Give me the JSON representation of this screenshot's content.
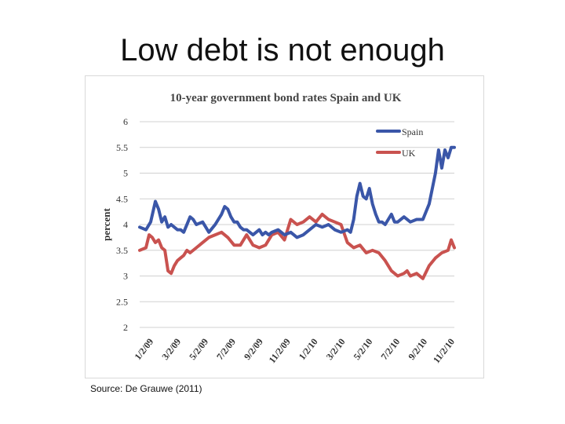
{
  "slide": {
    "title": "Low debt is not enough",
    "source": "Source: De Grauwe (2011)"
  },
  "colors": {
    "spain": "#3a56a8",
    "uk": "#c9524f",
    "grid": "#d0d0d0",
    "text": "#333333"
  },
  "chart_data": {
    "type": "line",
    "title": "10-year government bond rates Spain and UK",
    "xlabel": "",
    "ylabel": "percent",
    "ylim": [
      2,
      6
    ],
    "yticks": [
      "2",
      "2.5",
      "3",
      "3.5",
      "4",
      "4.5",
      "5",
      "5.5",
      "6"
    ],
    "xlim": [
      0,
      100
    ],
    "xticks": [
      {
        "label": "1/2/09",
        "x": 0
      },
      {
        "label": "3/2/09",
        "x": 8.7
      },
      {
        "label": "5/2/09",
        "x": 17.4
      },
      {
        "label": "7/2/09",
        "x": 26.1
      },
      {
        "label": "9/2/09",
        "x": 34.8
      },
      {
        "label": "11/2/09",
        "x": 43.5
      },
      {
        "label": "1/2/10",
        "x": 52.2
      },
      {
        "label": "3/2/10",
        "x": 60.9
      },
      {
        "label": "5/2/10",
        "x": 69.6
      },
      {
        "label": "7/2/10",
        "x": 78.3
      },
      {
        "label": "9/2/10",
        "x": 87.0
      },
      {
        "label": "11/2/10",
        "x": 95.7
      }
    ],
    "legend_position": "top-right",
    "grid": true,
    "series": [
      {
        "name": "Spain",
        "x": [
          0,
          2,
          3.5,
          5,
          6,
          7,
          8,
          9,
          10,
          11,
          12,
          13,
          14,
          15,
          16,
          17,
          18,
          20,
          22,
          24,
          26,
          27,
          28,
          29,
          30,
          31,
          32,
          33,
          34,
          35,
          36,
          37,
          38,
          39,
          40,
          41,
          42,
          44,
          46,
          48,
          50,
          52,
          54,
          56,
          58,
          60,
          62,
          64,
          66,
          67,
          68,
          69,
          70,
          71,
          72,
          73,
          74,
          75,
          76,
          77,
          78,
          79,
          80,
          81,
          82,
          84,
          86,
          88,
          90,
          92,
          94,
          95,
          96,
          97,
          98,
          99,
          100
        ],
        "values": [
          3.95,
          3.9,
          4.05,
          4.45,
          4.3,
          4.05,
          4.15,
          3.95,
          4.0,
          3.95,
          3.9,
          3.9,
          3.85,
          4.0,
          4.15,
          4.1,
          4.0,
          4.05,
          3.85,
          4.0,
          4.2,
          4.35,
          4.3,
          4.15,
          4.05,
          4.05,
          3.95,
          3.9,
          3.9,
          3.85,
          3.8,
          3.85,
          3.9,
          3.8,
          3.85,
          3.8,
          3.85,
          3.9,
          3.8,
          3.85,
          3.75,
          3.8,
          3.9,
          4.0,
          3.95,
          4.0,
          3.9,
          3.85,
          3.9,
          3.85,
          4.1,
          4.55,
          4.8,
          4.55,
          4.5,
          4.7,
          4.4,
          4.2,
          4.05,
          4.05,
          4.0,
          4.1,
          4.2,
          4.05,
          4.05,
          4.15,
          4.05,
          4.1,
          4.1,
          4.4,
          5.0,
          5.45,
          5.1,
          5.45,
          5.3,
          5.5,
          5.5
        ]
      },
      {
        "name": "UK",
        "x": [
          0,
          2,
          3,
          4,
          5,
          6,
          7,
          8,
          9,
          10,
          11,
          12,
          13,
          14,
          15,
          16,
          18,
          20,
          22,
          24,
          26,
          28,
          30,
          32,
          34,
          36,
          38,
          40,
          42,
          44,
          46,
          48,
          50,
          52,
          54,
          56,
          58,
          60,
          62,
          64,
          66,
          68,
          70,
          72,
          74,
          76,
          78,
          80,
          82,
          84,
          85,
          86,
          88,
          90,
          92,
          94,
          96,
          98,
          99,
          100
        ],
        "values": [
          3.5,
          3.55,
          3.8,
          3.75,
          3.65,
          3.7,
          3.55,
          3.5,
          3.1,
          3.05,
          3.2,
          3.3,
          3.35,
          3.4,
          3.5,
          3.45,
          3.55,
          3.65,
          3.75,
          3.8,
          3.85,
          3.75,
          3.6,
          3.6,
          3.8,
          3.6,
          3.55,
          3.6,
          3.8,
          3.85,
          3.7,
          4.1,
          4.0,
          4.05,
          4.15,
          4.05,
          4.2,
          4.1,
          4.05,
          4.0,
          3.65,
          3.55,
          3.6,
          3.45,
          3.5,
          3.45,
          3.3,
          3.1,
          3.0,
          3.05,
          3.1,
          3.0,
          3.05,
          2.95,
          3.2,
          3.35,
          3.45,
          3.5,
          3.7,
          3.55
        ]
      }
    ]
  }
}
